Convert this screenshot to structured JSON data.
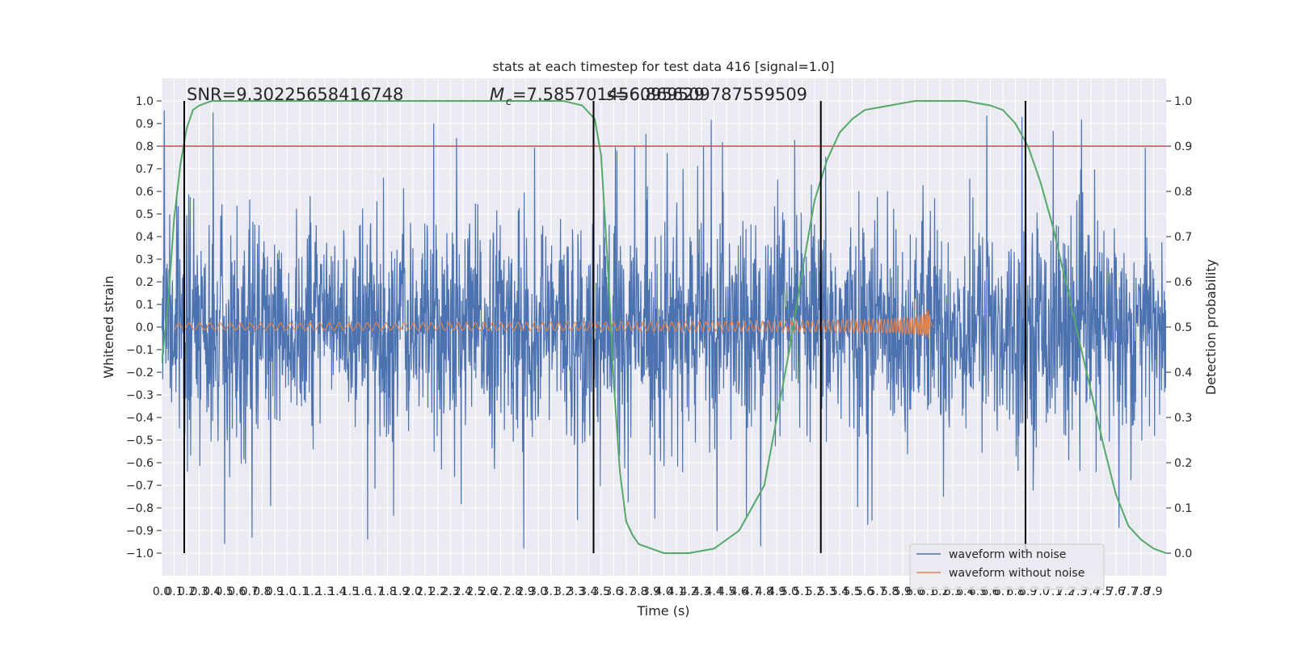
{
  "chart_data": {
    "type": "line",
    "title": "stats at each timestep for test data 416 [signal=1.0]",
    "xlabel": "Time (s)",
    "ylabel": "Whitened strain",
    "y2label": "Detection probability",
    "xlim": [
      0.0,
      8.0
    ],
    "ylim": [
      -1.1,
      1.1
    ],
    "y2lim": [
      -0.05,
      1.05
    ],
    "grid": true,
    "legend_position": "bottom-right",
    "annotations": [
      "SNR=9.30225658416748",
      "=7.585701456095629",
      "=6.869509787559509"
    ],
    "annotation_symbols": [
      "M",
      "c",
      "s"
    ],
    "x_ticks": [
      "0.0",
      "0.1",
      "0.2",
      "0.3",
      "0.4",
      "0.5",
      "0.6",
      "0.7",
      "0.8",
      "0.9",
      "1.0",
      "1.1",
      "1.2",
      "1.3",
      "1.4",
      "1.5",
      "1.6",
      "1.7",
      "1.8",
      "1.9",
      "2.0",
      "2.1",
      "2.2",
      "2.3",
      "2.4",
      "2.5",
      "2.6",
      "2.7",
      "2.8",
      "2.9",
      "3.0",
      "3.1",
      "3.2",
      "3.3",
      "3.4",
      "3.5",
      "3.6",
      "3.7",
      "3.8",
      "3.9",
      "4.0",
      "4.1",
      "4.2",
      "4.3",
      "4.4",
      "4.5",
      "4.6",
      "4.7",
      "4.8",
      "4.9",
      "5.0",
      "5.1",
      "5.2",
      "5.3",
      "5.4",
      "5.5",
      "5.6",
      "5.7",
      "5.8",
      "5.9",
      "6.0",
      "6.1",
      "6.2",
      "6.3",
      "6.4",
      "6.5",
      "6.6",
      "6.7",
      "6.8",
      "6.9",
      "7.0",
      "7.1",
      "7.2",
      "7.3",
      "7.4",
      "7.5",
      "7.6",
      "7.7",
      "7.8",
      "7.9"
    ],
    "y_ticks": [
      "-1.0",
      "-0.9",
      "-0.8",
      "-0.7",
      "-0.6",
      "-0.5",
      "-0.4",
      "-0.3",
      "-0.2",
      "-0.1",
      "0.0",
      "0.1",
      "0.2",
      "0.3",
      "0.4",
      "0.5",
      "0.6",
      "0.7",
      "0.8",
      "0.9",
      "1.0"
    ],
    "y2_ticks": [
      "0.0",
      "0.1",
      "0.2",
      "0.3",
      "0.4",
      "0.5",
      "0.6",
      "0.7",
      "0.8",
      "0.9",
      "1.0"
    ],
    "vertical_lines_x": [
      0.18,
      3.44,
      5.25,
      6.88
    ],
    "threshold_y2": 0.9,
    "colors": {
      "noise": "#4c72b0",
      "clean": "#dd8452",
      "probability": "#55a868",
      "threshold": "#c44e52",
      "vline": "#000000",
      "plot_bg": "#eaeaf2",
      "grid": "#ffffff"
    },
    "series": [
      {
        "name": "waveform with noise",
        "role": "noise",
        "style": "dense noise trace, envelope approx. +/-0.5, peaks to +/-1.0"
      },
      {
        "name": "waveform without noise",
        "role": "clean",
        "chirp_end_x": 6.12,
        "chirp_peak": 0.34,
        "chirp_trough": -0.22
      },
      {
        "name": "detection probability",
        "role": "probability",
        "x": [
          0.0,
          0.05,
          0.1,
          0.15,
          0.2,
          0.25,
          0.3,
          0.4,
          0.5,
          1.0,
          2.0,
          3.0,
          3.2,
          3.35,
          3.45,
          3.5,
          3.55,
          3.6,
          3.65,
          3.7,
          3.75,
          3.8,
          3.9,
          4.0,
          4.2,
          4.4,
          4.6,
          4.8,
          5.0,
          5.1,
          5.2,
          5.3,
          5.4,
          5.5,
          5.6,
          5.8,
          6.0,
          6.2,
          6.4,
          6.6,
          6.7,
          6.8,
          6.9,
          7.0,
          7.1,
          7.2,
          7.3,
          7.4,
          7.5,
          7.6,
          7.7,
          7.8,
          7.9,
          8.0
        ],
        "y": [
          0.42,
          0.55,
          0.74,
          0.86,
          0.94,
          0.98,
          0.99,
          1.0,
          1.0,
          1.0,
          1.0,
          1.0,
          1.0,
          0.99,
          0.96,
          0.88,
          0.65,
          0.38,
          0.18,
          0.07,
          0.04,
          0.02,
          0.01,
          0.0,
          0.0,
          0.01,
          0.05,
          0.15,
          0.45,
          0.62,
          0.78,
          0.87,
          0.93,
          0.96,
          0.98,
          0.99,
          1.0,
          1.0,
          1.0,
          0.99,
          0.98,
          0.95,
          0.9,
          0.82,
          0.72,
          0.6,
          0.48,
          0.36,
          0.24,
          0.13,
          0.06,
          0.03,
          0.01,
          0.0
        ]
      }
    ]
  }
}
